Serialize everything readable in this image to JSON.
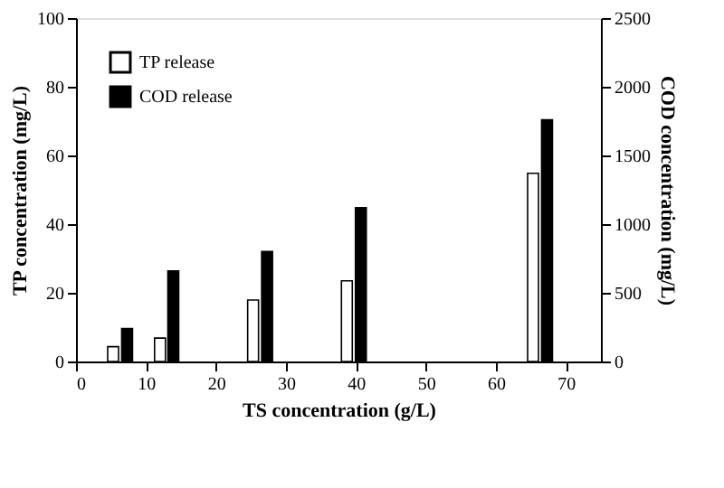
{
  "chart_data": {
    "type": "bar",
    "xlabel": "TS concentration (g/L)",
    "ylabel": "TP concentration (mg/L)",
    "y2label": "COD concentration (mg/L)",
    "series": [
      {
        "name": "TP release",
        "color": "#ffffff",
        "x": [
          5.3,
          12,
          25.3,
          38.7,
          65.3
        ],
        "values": [
          4.3,
          6.8,
          17.9,
          23.5,
          54.8
        ]
      },
      {
        "name": "COD release",
        "color": "#000000",
        "axis": "y2",
        "x": [
          7.3,
          13.9,
          27.3,
          40.7,
          67.3
        ],
        "values": [
          240,
          660,
          800,
          1120,
          1760
        ]
      }
    ],
    "xlim": [
      0,
      75
    ],
    "xticks": [
      0,
      10,
      20,
      30,
      40,
      50,
      60,
      70
    ],
    "ylim": [
      0,
      100
    ],
    "yticks": [
      0,
      20,
      40,
      60,
      80,
      100
    ],
    "y2lim": [
      0,
      2500
    ],
    "y2ticks": [
      0,
      500,
      1000,
      1500,
      2000,
      2500
    ],
    "legend": "top left",
    "grid": false
  }
}
